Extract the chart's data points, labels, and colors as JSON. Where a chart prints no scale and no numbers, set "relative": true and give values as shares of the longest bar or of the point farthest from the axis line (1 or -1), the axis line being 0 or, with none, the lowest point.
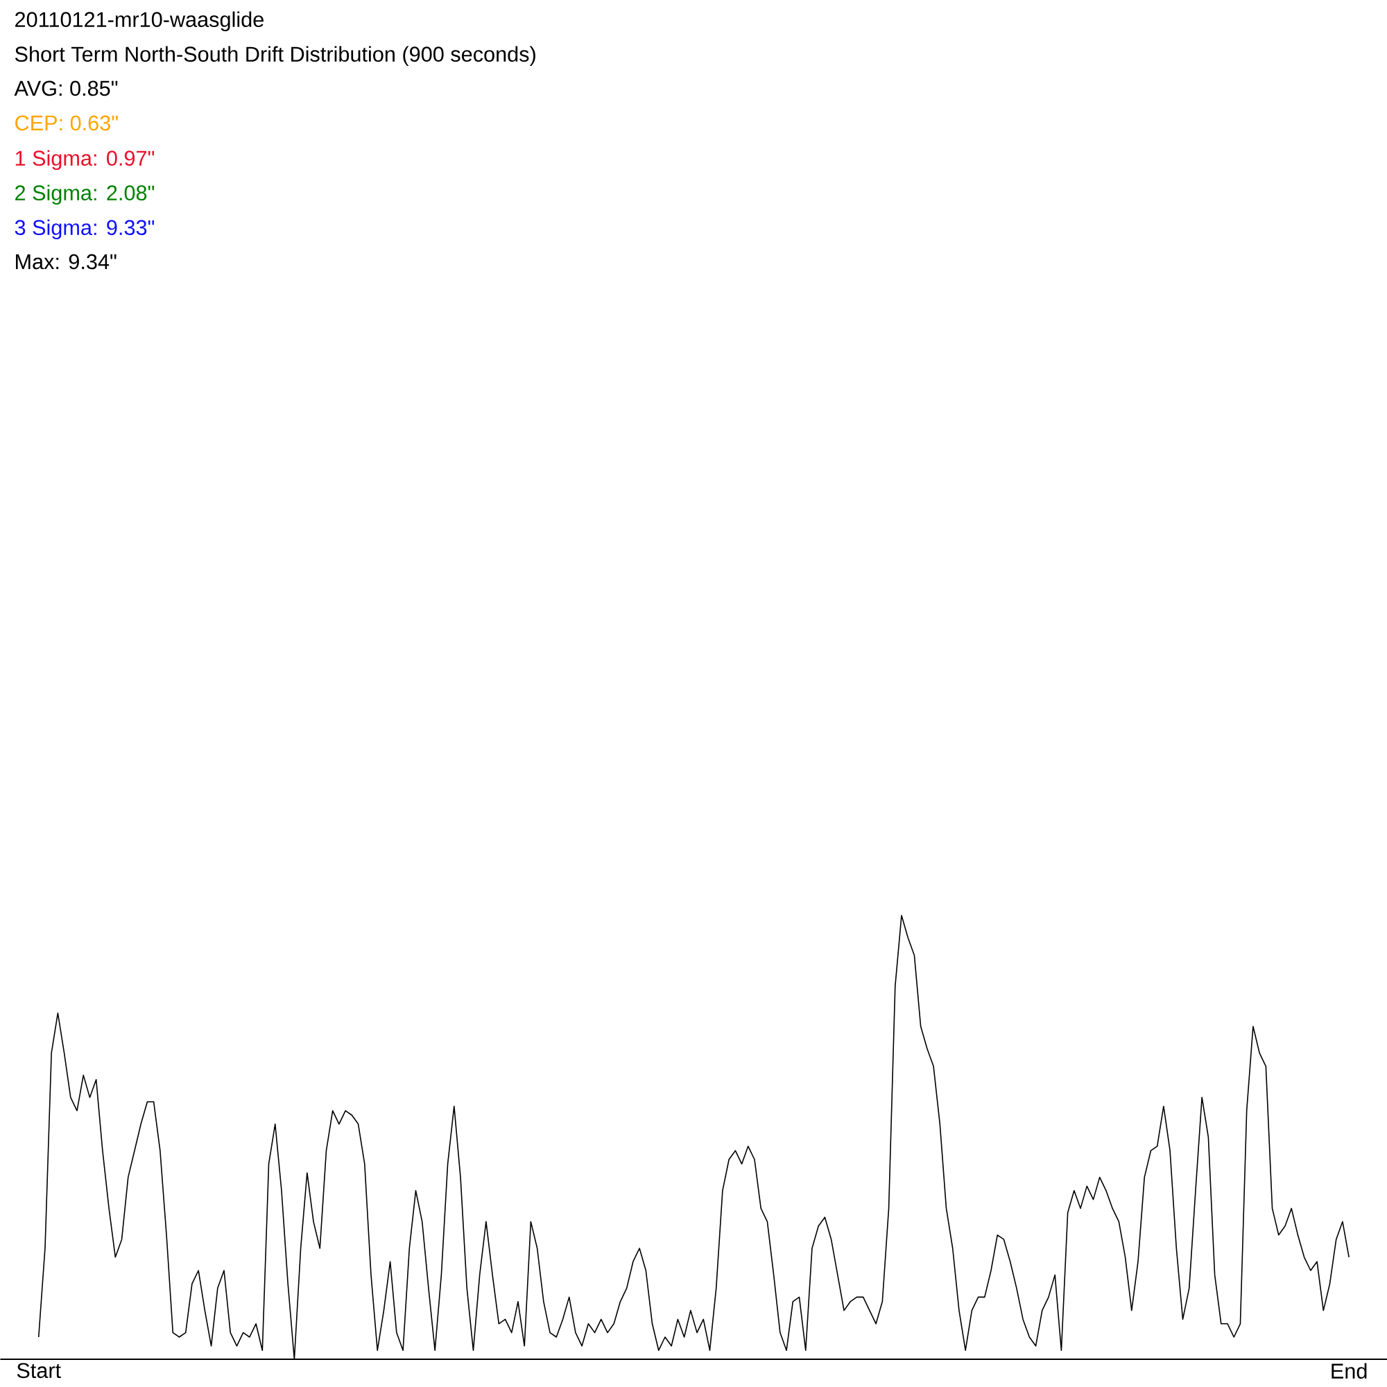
{
  "chart_data": {
    "type": "line",
    "title": "20110121-mr10-waasglide",
    "subtitle": "Short Term North-South Drift Distribution (900 seconds)",
    "annotations": [
      "AVG: 0.85\"",
      "CEP: 0.63\"",
      "1 Sigma: 0.97\"",
      "2 Sigma: 2.08\"",
      "3 Sigma: 9.33\"",
      "Max: 9.34\""
    ],
    "relative": true,
    "color": "#000000",
    "line_style": "solid",
    "categories": [
      "Start",
      null,
      null,
      null,
      null,
      null,
      null,
      null,
      null,
      null,
      null,
      null,
      null,
      null,
      null,
      null,
      null,
      null,
      null,
      null,
      null,
      null,
      null,
      null,
      null,
      null,
      null,
      null,
      null,
      null,
      null,
      null,
      null,
      null,
      null,
      null,
      null,
      null,
      null,
      null,
      null,
      null,
      null,
      null,
      null,
      null,
      null,
      null,
      null,
      null,
      null,
      null,
      null,
      null,
      null,
      null,
      null,
      null,
      null,
      null,
      null,
      null,
      null,
      null,
      null,
      null,
      null,
      null,
      null,
      null,
      null,
      null,
      null,
      null,
      null,
      null,
      null,
      null,
      null,
      null,
      null,
      null,
      null,
      null,
      null,
      null,
      null,
      null,
      null,
      null,
      null,
      null,
      null,
      null,
      null,
      null,
      null,
      null,
      null,
      null,
      null,
      null,
      null,
      null,
      null,
      null,
      null,
      null,
      null,
      null,
      null,
      null,
      null,
      null,
      null,
      null,
      null,
      null,
      null,
      null,
      null,
      null,
      null,
      null,
      null,
      null,
      null,
      null,
      null,
      null,
      null,
      null,
      null,
      null,
      null,
      null,
      null,
      null,
      null,
      null,
      null,
      null,
      null,
      null,
      null,
      null,
      null,
      null,
      null,
      null,
      null,
      null,
      null,
      null,
      null,
      null,
      null,
      null,
      null,
      null,
      null,
      null,
      null,
      null,
      null,
      null,
      null,
      null,
      null,
      null,
      null,
      null,
      null,
      null,
      null,
      null,
      null,
      null,
      null,
      null,
      null,
      null,
      null,
      null,
      null,
      null,
      null,
      null,
      null,
      null,
      null,
      null,
      null,
      null,
      null,
      null,
      null,
      null,
      null,
      null,
      null,
      null,
      null,
      null,
      null,
      "End"
    ],
    "values": [
      0.05,
      0.25,
      0.69,
      0.78,
      0.69,
      0.59,
      0.56,
      0.64,
      0.59,
      0.63,
      0.47,
      0.34,
      0.23,
      0.27,
      0.41,
      0.47,
      0.53,
      0.58,
      0.58,
      0.47,
      0.28,
      0.06,
      0.05,
      0.06,
      0.17,
      0.2,
      0.11,
      0.03,
      0.16,
      0.2,
      0.06,
      0.03,
      0.06,
      0.05,
      0.08,
      0.02,
      0.44,
      0.53,
      0.38,
      0.17,
      0,
      0.25,
      0.42,
      0.31,
      0.25,
      0.47,
      0.56,
      0.53,
      0.56,
      0.55,
      0.53,
      0.44,
      0.19,
      0.02,
      0.11,
      0.22,
      0.06,
      0.02,
      0.25,
      0.38,
      0.31,
      0.16,
      0.02,
      0.19,
      0.44,
      0.57,
      0.41,
      0.16,
      0.02,
      0.19,
      0.31,
      0.19,
      0.08,
      0.09,
      0.06,
      0.13,
      0.03,
      0.31,
      0.25,
      0.13,
      0.06,
      0.05,
      0.09,
      0.14,
      0.06,
      0.03,
      0.08,
      0.06,
      0.09,
      0.06,
      0.08,
      0.13,
      0.16,
      0.22,
      0.25,
      0.2,
      0.08,
      0.02,
      0.05,
      0.03,
      0.09,
      0.05,
      0.11,
      0.06,
      0.09,
      0.02,
      0.16,
      0.38,
      0.45,
      0.47,
      0.44,
      0.48,
      0.45,
      0.34,
      0.31,
      0.19,
      0.06,
      0.02,
      0.13,
      0.14,
      0.02,
      0.25,
      0.3,
      0.32,
      0.27,
      0.19,
      0.11,
      0.13,
      0.14,
      0.14,
      0.11,
      0.08,
      0.13,
      0.34,
      0.84,
      1,
      0.95,
      0.91,
      0.75,
      0.7,
      0.66,
      0.53,
      0.34,
      0.25,
      0.11,
      0.02,
      0.11,
      0.14,
      0.14,
      0.2,
      0.28,
      0.27,
      0.22,
      0.16,
      0.09,
      0.05,
      0.03,
      0.11,
      0.14,
      0.19,
      0.02,
      0.33,
      0.38,
      0.34,
      0.39,
      0.36,
      0.41,
      0.38,
      0.34,
      0.31,
      0.23,
      0.11,
      0.22,
      0.41,
      0.47,
      0.48,
      0.57,
      0.47,
      0.25,
      0.09,
      0.16,
      0.38,
      0.59,
      0.5,
      0.19,
      0.08,
      0.08,
      0.05,
      0.08,
      0.56,
      0.75,
      0.69,
      0.66,
      0.34,
      0.28,
      0.3,
      0.34,
      0.28,
      0.23,
      0.2,
      0.22,
      0.11,
      0.17,
      0.27,
      0.31,
      0.23
    ]
  }
}
